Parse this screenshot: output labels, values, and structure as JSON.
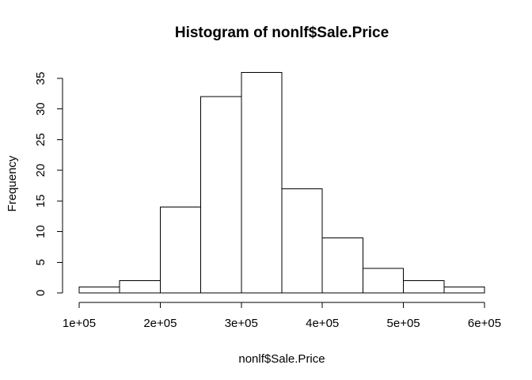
{
  "chart_data": {
    "type": "bar",
    "subtype": "histogram",
    "title": "Histogram of nonlf$Sale.Price",
    "xlabel": "nonlf$Sale.Price",
    "ylabel": "Frequency",
    "breaks": [
      100000,
      150000,
      200000,
      250000,
      300000,
      350000,
      400000,
      450000,
      500000,
      550000,
      600000
    ],
    "counts": [
      1,
      2,
      14,
      32,
      36,
      17,
      9,
      4,
      2,
      1
    ],
    "x_ticks": [
      {
        "value": 100000,
        "label": "1e+05"
      },
      {
        "value": 200000,
        "label": "2e+05"
      },
      {
        "value": 300000,
        "label": "3e+05"
      },
      {
        "value": 400000,
        "label": "4e+05"
      },
      {
        "value": 500000,
        "label": "5e+05"
      },
      {
        "value": 600000,
        "label": "6e+05"
      }
    ],
    "y_ticks": [
      0,
      5,
      10,
      15,
      20,
      25,
      30,
      35
    ],
    "xlim": [
      100000,
      600000
    ],
    "ylim": [
      0,
      35
    ],
    "bar_fill": "#ffffff",
    "line_color": "#000000",
    "background": "#ffffff",
    "grid": false,
    "legend": "none"
  }
}
